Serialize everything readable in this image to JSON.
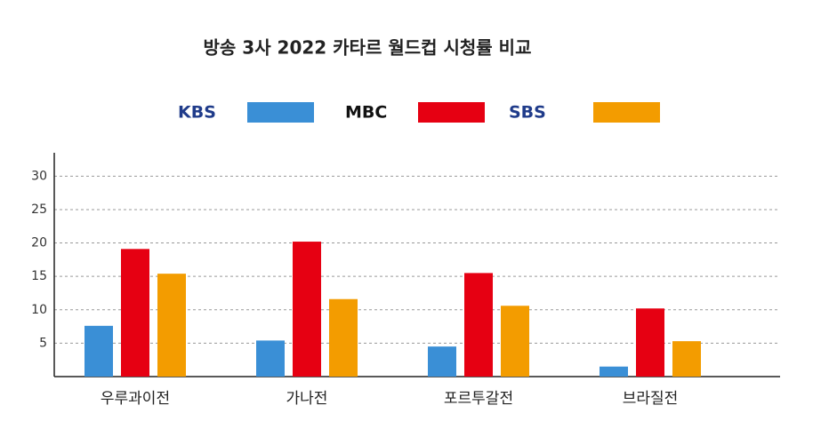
{
  "chart_data": {
    "type": "bar",
    "title": "방송 3사 2022 카타르 월드컵 시청률 비교",
    "categories": [
      "우루과이전",
      "가나전",
      "포르투갈전",
      "브라질전"
    ],
    "series": [
      {
        "name": "KBS",
        "color": "#3a8fd6",
        "values": [
          7.6,
          5.4,
          4.5,
          1.5
        ]
      },
      {
        "name": "MBC",
        "color": "#e60012",
        "values": [
          19.1,
          20.2,
          15.5,
          10.2
        ]
      },
      {
        "name": "SBS",
        "color": "#f39c00",
        "values": [
          15.4,
          11.6,
          10.6,
          5.3
        ]
      }
    ],
    "ylim": [
      0,
      33.5
    ],
    "yticks": [
      5,
      10,
      15,
      20,
      25,
      30
    ],
    "grid": true
  }
}
